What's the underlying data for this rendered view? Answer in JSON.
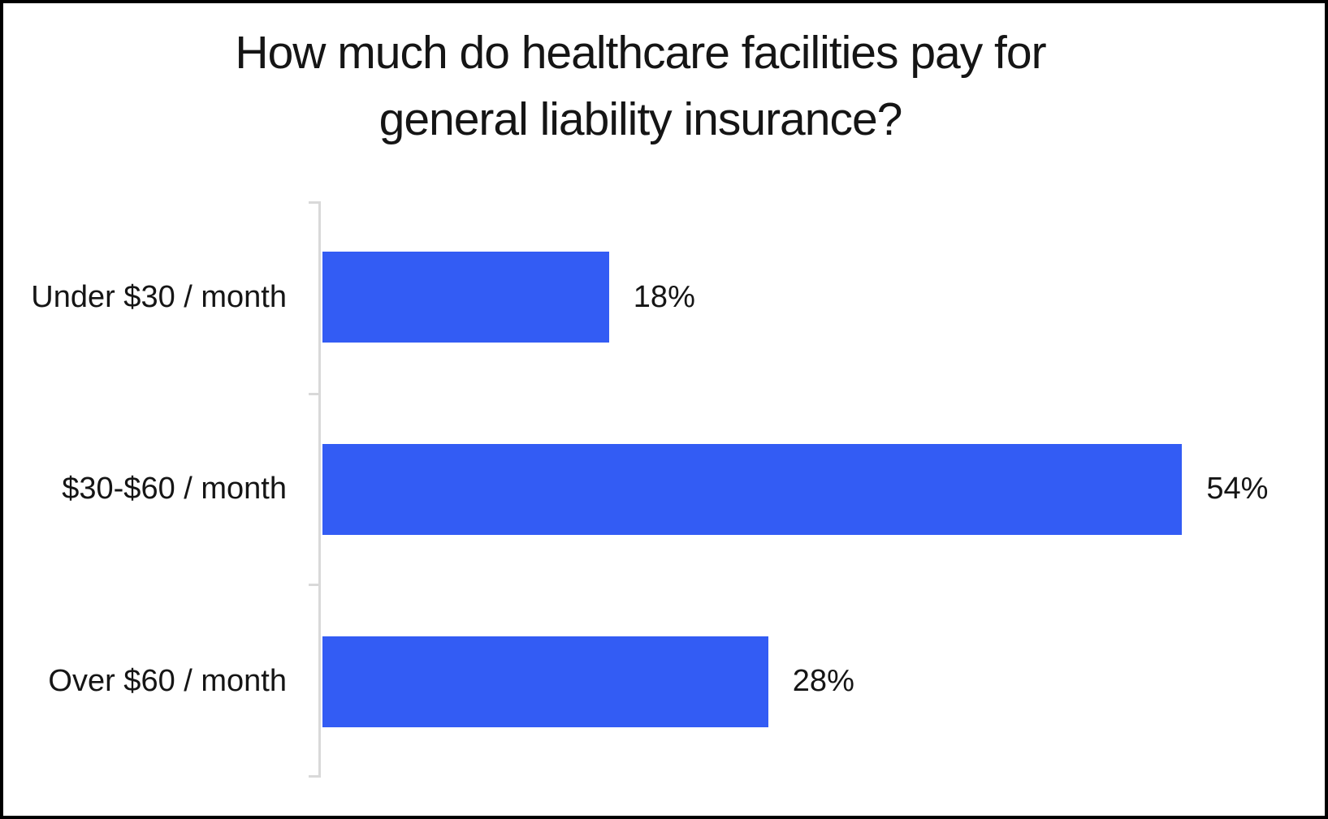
{
  "chart_data": {
    "type": "bar",
    "orientation": "horizontal",
    "title": "How much do healthcare facilities pay for general liability insurance?",
    "title_lines": [
      "How much do healthcare facilities pay for",
      "general liability insurance?"
    ],
    "categories": [
      "Under $30 / month",
      "$30-$60 / month",
      "Over $60 / month"
    ],
    "values": [
      18,
      54,
      28
    ],
    "value_labels": [
      "18%",
      "54%",
      "28%"
    ],
    "xlabel": "",
    "ylabel": "",
    "xlim": [
      0,
      60
    ],
    "grid": false,
    "legend": false,
    "colors": {
      "bar": "#335cf4",
      "axis": "#d9d9d9",
      "text": "#151515",
      "background": "#ffffff",
      "border": "#000000"
    }
  }
}
